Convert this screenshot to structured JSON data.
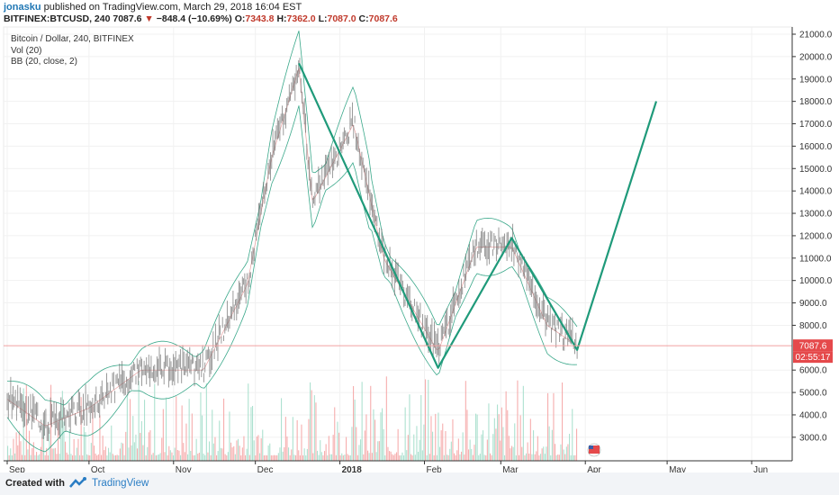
{
  "header": {
    "author": "jonasku",
    "published_text": "published on TradingView.com, March 29, 2018 16:04 EST",
    "symbol": "BITFINEX:BTCUSD, 240",
    "last_price": "7087.6",
    "change": "−848.4 (−10.69%)",
    "open_label": "O:",
    "open": "7343.8",
    "high_label": "H:",
    "high": "7362.0",
    "low_label": "L:",
    "low": "7087.0",
    "close_label": "C:",
    "close": "7087.6"
  },
  "legend": {
    "title": "Bitcoin / Dollar, 240, BITFINEX",
    "vol": "Vol (20)",
    "bb": "BB (20, close, 2)"
  },
  "footer": {
    "created_with": "Created with",
    "brand": "TradingView"
  },
  "colors": {
    "pattern": "#1f9a7a",
    "bands": "#3aa88a",
    "candles": "#6b6b6b",
    "vol_up": "#9fdcc8",
    "vol_down": "#f4a0a0",
    "price_line": "#f0a0a0",
    "price_tag": "#e5494b"
  },
  "chart_data": {
    "type": "line",
    "title": "Bitcoin / Dollar, 240, BITFINEX",
    "y_axis": {
      "ticks": [
        "21000.0",
        "20000.0",
        "19000.0",
        "18000.0",
        "17000.0",
        "16000.0",
        "15000.0",
        "14000.0",
        "13000.0",
        "12000.0",
        "11000.0",
        "10000.0",
        "9000.0",
        "8000.0",
        "6000.0",
        "5000.0",
        "4000.0",
        "3000.0"
      ],
      "range": [
        2500,
        21400
      ]
    },
    "x_axis": {
      "ticks": [
        "Sep",
        "Oct",
        "Nov",
        "Dec",
        "2018",
        "Feb",
        "Mar",
        "Apr",
        "May",
        "Jun"
      ]
    },
    "price_series_approx": [
      {
        "x": "2017-09-01",
        "y": 4700
      },
      {
        "x": "2017-09-15",
        "y": 3500
      },
      {
        "x": "2017-10-01",
        "y": 4300
      },
      {
        "x": "2017-10-20",
        "y": 6000
      },
      {
        "x": "2017-11-12",
        "y": 6000
      },
      {
        "x": "2017-11-28",
        "y": 9800
      },
      {
        "x": "2017-12-07",
        "y": 15500
      },
      {
        "x": "2017-12-17",
        "y": 19500
      },
      {
        "x": "2017-12-22",
        "y": 13500
      },
      {
        "x": "2018-01-06",
        "y": 17000
      },
      {
        "x": "2018-01-17",
        "y": 11000
      },
      {
        "x": "2018-02-06",
        "y": 6800
      },
      {
        "x": "2018-02-20",
        "y": 11500
      },
      {
        "x": "2018-03-05",
        "y": 11500
      },
      {
        "x": "2018-03-18",
        "y": 8000
      },
      {
        "x": "2018-03-29",
        "y": 7087.6
      }
    ],
    "pattern_line": [
      {
        "x": "2017-12-17",
        "y": 19700
      },
      {
        "x": "2018-02-06",
        "y": 6100
      },
      {
        "x": "2018-03-05",
        "y": 11900
      },
      {
        "x": "2018-03-29",
        "y": 6900
      },
      {
        "x": "2018-04-27",
        "y": 18000
      }
    ],
    "current_price": {
      "value": 7087.6,
      "label": "7087.6",
      "timer": "02:55:17"
    },
    "volume_indicator": "Vol (20)",
    "bollinger_bands": "BB (20, close, 2)"
  }
}
